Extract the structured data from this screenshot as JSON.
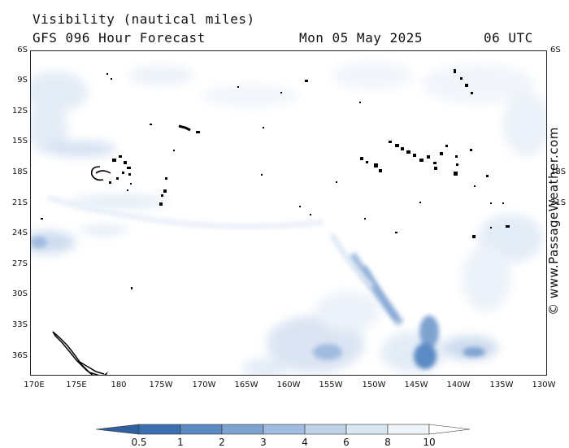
{
  "header": {
    "title": "Visibility (nautical miles)",
    "subtitle": "GFS 096 Hour Forecast",
    "date": "Mon 05 May 2025",
    "time": "06 UTC"
  },
  "watermark": "© www.PassageWeather.com",
  "axes": {
    "lat_labels": [
      "6S",
      "9S",
      "12S",
      "15S",
      "18S",
      "21S",
      "24S",
      "27S",
      "30S",
      "33S",
      "36S"
    ],
    "lon_labels": [
      "170E",
      "175E",
      "180",
      "175W",
      "170W",
      "165W",
      "160W",
      "155W",
      "150W",
      "145W",
      "140W",
      "135W",
      "130W"
    ]
  },
  "legend": {
    "labels": [
      "0.5",
      "1",
      "2",
      "3",
      "4",
      "6",
      "8",
      "10"
    ],
    "colors": [
      "#3a6fb3",
      "#5b8ac4",
      "#7fa3d1",
      "#a1bcdf",
      "#bfd2ea",
      "#dae6f4",
      "#eef3fa",
      "#ffffff"
    ]
  },
  "colors": {
    "low_visibility": "#5b8ac4",
    "moderate_visibility": "#a1bcdf",
    "high_visibility": "#dae6f4",
    "land": "#000000"
  }
}
